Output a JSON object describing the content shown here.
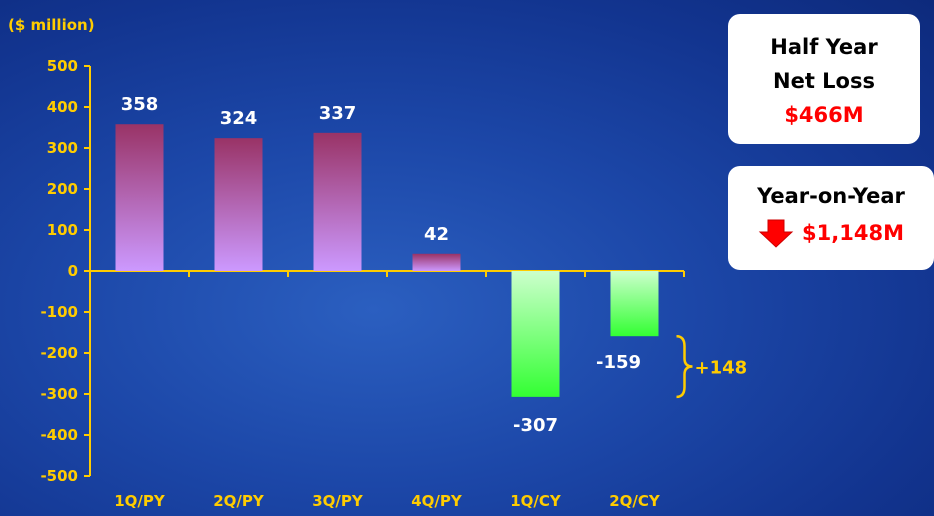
{
  "unit_label": "($ million)",
  "chart_data": {
    "type": "bar",
    "categories": [
      "1Q/PY",
      "2Q/PY",
      "3Q/PY",
      "4Q/PY",
      "1Q/CY",
      "2Q/CY"
    ],
    "values": [
      358,
      324,
      337,
      42,
      -307,
      -159
    ],
    "data_labels": [
      "358",
      "324",
      "337",
      "42",
      "-307",
      "-159"
    ],
    "ylim": [
      -500,
      500
    ],
    "yticks": [
      500,
      400,
      300,
      200,
      100,
      0,
      -100,
      -200,
      -300,
      -400,
      -500
    ],
    "ytick_labels": [
      "500",
      "400",
      "300",
      "200",
      "100",
      "0",
      "-100",
      "-200",
      "-300",
      "-400",
      "-500"
    ],
    "ylabel": "($ million)",
    "grid": false,
    "colors": {
      "positive_top": "#993366",
      "positive_bottom": "#cc99ff",
      "negative_top": "#ccffcc",
      "negative_bottom": "#33ff33",
      "axis": "#ffcc00",
      "tick_text": "#ffcc00",
      "data_text": "#ffffff"
    },
    "annotation": {
      "text": "+148",
      "between_categories": [
        "1Q/CY",
        "2Q/CY"
      ],
      "from_value": -307,
      "to_value": -159
    }
  },
  "cards": {
    "half_year": {
      "line1": "Half Year",
      "line2": "Net Loss",
      "value": "$466M",
      "value_color": "#ff0000"
    },
    "year_on_year": {
      "line1": "Year-on-Year",
      "value": "$1,148M",
      "arrow_icon": "down-arrow-icon",
      "arrow_color": "#ff0000"
    }
  }
}
